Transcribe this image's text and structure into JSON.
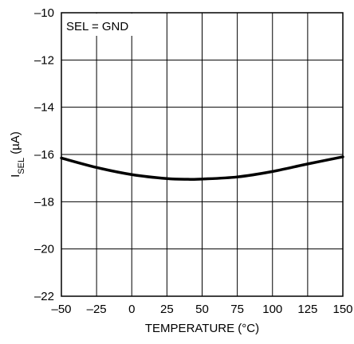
{
  "chart_data": {
    "type": "line",
    "title": "",
    "xlabel": "TEMPERATURE (°C)",
    "ylabel_main": "I",
    "ylabel_sub": "SEL",
    "ylabel_unit": " (µA)",
    "xlim": [
      -50,
      150
    ],
    "ylim": [
      -22,
      -10
    ],
    "xticks": [
      -50,
      -25,
      0,
      25,
      50,
      75,
      100,
      125,
      150
    ],
    "yticks": [
      -10,
      -12,
      -14,
      -16,
      -18,
      -20,
      -22
    ],
    "xtick_labels": [
      "–50",
      "–25",
      "0",
      "25",
      "50",
      "75",
      "100",
      "125",
      "150"
    ],
    "ytick_labels": [
      "–10",
      "–12",
      "–14",
      "–16",
      "–18",
      "–20",
      "–22"
    ],
    "grid": true,
    "annotation": "SEL = GND",
    "series": [
      {
        "x": [
          -50,
          -25,
          0,
          25,
          40,
          50,
          75,
          100,
          125,
          150
        ],
        "y": [
          -16.15,
          -16.55,
          -16.85,
          -17.02,
          -17.05,
          -17.04,
          -16.95,
          -16.72,
          -16.4,
          -16.1
        ]
      }
    ]
  }
}
